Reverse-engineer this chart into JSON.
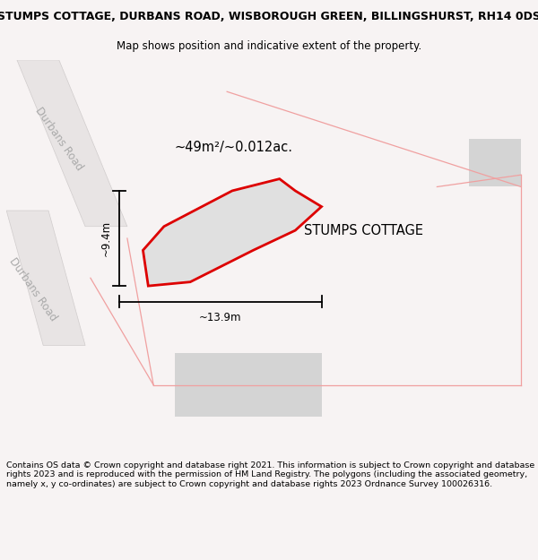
{
  "title_line1": "STUMPS COTTAGE, DURBANS ROAD, WISBOROUGH GREEN, BILLINGSHURST, RH14 0DS",
  "title_line2": "Map shows position and indicative extent of the property.",
  "footer_text": "Contains OS data © Crown copyright and database right 2021. This information is subject to Crown copyright and database rights 2023 and is reproduced with the permission of HM Land Registry. The polygons (including the associated geometry, namely x, y co-ordinates) are subject to Crown copyright and database rights 2023 Ordnance Survey 100026316.",
  "bg_color": "#f7f3f3",
  "map_bg": "#ffffff",
  "road_fill": "#e8e4e4",
  "road_line": "#d0cccc",
  "boundary_color": "#f0a0a0",
  "property_outline_color": "#dd0000",
  "property_fill_color": "#e0e0e0",
  "road_label": "Durbans Road",
  "property_label": "STUMPS COTTAGE",
  "area_label": "~49m²/~0.012ac.",
  "dim_width": "~13.9m",
  "dim_height": "~9.4m",
  "title_fontsize": 9.0,
  "subtitle_fontsize": 8.5,
  "footer_fontsize": 6.8,
  "label_fontsize": 10.5,
  "area_fontsize": 10.5,
  "dim_fontsize": 8.5,
  "road_label_fontsize": 8.5
}
